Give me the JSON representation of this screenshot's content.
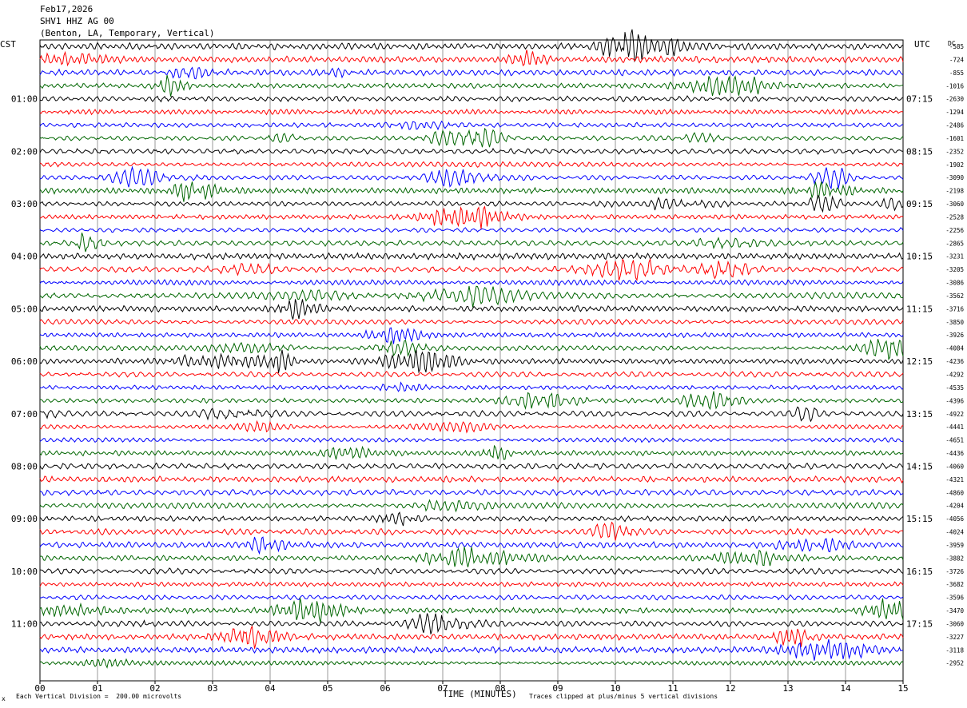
{
  "header": {
    "date": "Feb17,2026",
    "station": "SHV1 HHZ AG 00",
    "location": "(Benton, LA, Temporary, Vertical)"
  },
  "axes": {
    "left_tz": "CST",
    "right_tz": "UTC",
    "dc_label": "DC",
    "xlabel": "TIME (MINUTES)",
    "footer_left": "Each Vertical Division =  200.00 microvolts",
    "footer_right": "Traces clipped at plus/minus 5 vertical divisions",
    "corner_mark": "x"
  },
  "chart_data": {
    "type": "line",
    "title": "",
    "xlabel": "TIME (MINUTES)",
    "ylabel": "",
    "xlim": [
      0,
      15
    ],
    "x_ticks": [
      "00",
      "01",
      "02",
      "03",
      "04",
      "05",
      "06",
      "07",
      "08",
      "09",
      "10",
      "11",
      "12",
      "13",
      "14",
      "15"
    ],
    "grid": true,
    "rows_per_hour": 4,
    "row_minutes": 15,
    "trace_colors": [
      "#000000",
      "#ff0000",
      "#0000ff",
      "#006600"
    ],
    "left_hour_labels": [
      "01:00",
      "02:00",
      "03:00",
      "04:00",
      "05:00",
      "06:00",
      "07:00",
      "08:00",
      "09:00",
      "10:00",
      "11:00"
    ],
    "right_hour_labels": [
      "07:15",
      "08:15",
      "09:15",
      "10:15",
      "11:15",
      "12:15",
      "13:15",
      "14:15",
      "15:15",
      "16:15",
      "17:15"
    ],
    "dc_offsets": [
      "-585",
      "-724",
      "-855",
      "-1016",
      "-2630",
      "-1294",
      "-2486",
      "-1601",
      "-2352",
      "-1902",
      "-3090",
      "-2198",
      "-3060",
      "-2528",
      "-2256",
      "-2865",
      "-3231",
      "-3205",
      "-3086",
      "-3562",
      "-3716",
      "-3850",
      "-3926",
      "-4084",
      "-4236",
      "-4292",
      "-4535",
      "-4396",
      "-4922",
      "-4441",
      "-4651",
      "-4436",
      "-4060",
      "-4321",
      "-4860",
      "-4204",
      "-4056",
      "-4024",
      "-3959",
      "-3882",
      "-3726",
      "-3682",
      "-3596",
      "-3470",
      "-3060",
      "-3227",
      "-3118",
      "-2952"
    ]
  }
}
